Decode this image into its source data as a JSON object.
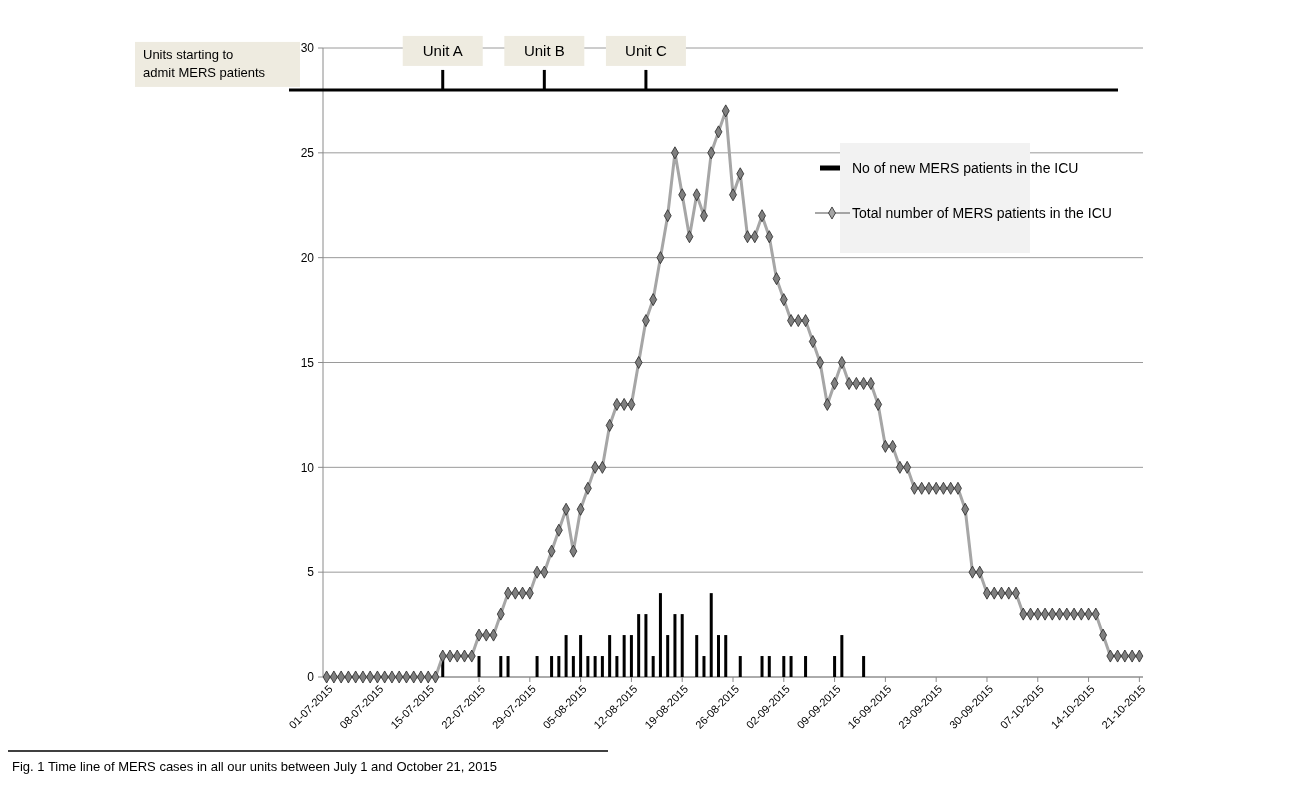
{
  "chart_data": {
    "type": "bar",
    "x": [
      "2015-07-01",
      "2015-07-02",
      "2015-07-03",
      "2015-07-04",
      "2015-07-05",
      "2015-07-06",
      "2015-07-07",
      "2015-07-08",
      "2015-07-09",
      "2015-07-10",
      "2015-07-11",
      "2015-07-12",
      "2015-07-13",
      "2015-07-14",
      "2015-07-15",
      "2015-07-16",
      "2015-07-17",
      "2015-07-18",
      "2015-07-19",
      "2015-07-20",
      "2015-07-21",
      "2015-07-22",
      "2015-07-23",
      "2015-07-24",
      "2015-07-25",
      "2015-07-26",
      "2015-07-27",
      "2015-07-28",
      "2015-07-29",
      "2015-07-30",
      "2015-07-31",
      "2015-08-01",
      "2015-08-02",
      "2015-08-03",
      "2015-08-04",
      "2015-08-05",
      "2015-08-06",
      "2015-08-07",
      "2015-08-08",
      "2015-08-09",
      "2015-08-10",
      "2015-08-11",
      "2015-08-12",
      "2015-08-13",
      "2015-08-14",
      "2015-08-15",
      "2015-08-16",
      "2015-08-17",
      "2015-08-18",
      "2015-08-19",
      "2015-08-20",
      "2015-08-21",
      "2015-08-22",
      "2015-08-23",
      "2015-08-24",
      "2015-08-25",
      "2015-08-26",
      "2015-08-27",
      "2015-08-28",
      "2015-08-29",
      "2015-08-30",
      "2015-08-31",
      "2015-09-01",
      "2015-09-02",
      "2015-09-03",
      "2015-09-04",
      "2015-09-05",
      "2015-09-06",
      "2015-09-07",
      "2015-09-08",
      "2015-09-09",
      "2015-09-10",
      "2015-09-11",
      "2015-09-12",
      "2015-09-13",
      "2015-09-14",
      "2015-09-15",
      "2015-09-16",
      "2015-09-17",
      "2015-09-18",
      "2015-09-19",
      "2015-09-20",
      "2015-09-21",
      "2015-09-22",
      "2015-09-23",
      "2015-09-24",
      "2015-09-25",
      "2015-09-26",
      "2015-09-27",
      "2015-09-28",
      "2015-09-29",
      "2015-09-30",
      "2015-10-01",
      "2015-10-02",
      "2015-10-03",
      "2015-10-04",
      "2015-10-05",
      "2015-10-06",
      "2015-10-07",
      "2015-10-08",
      "2015-10-09",
      "2015-10-10",
      "2015-10-11",
      "2015-10-12",
      "2015-10-13",
      "2015-10-14",
      "2015-10-15",
      "2015-10-16",
      "2015-10-17",
      "2015-10-18",
      "2015-10-19",
      "2015-10-20",
      "2015-10-21"
    ],
    "series": [
      {
        "name": "No of new MERS patients in the ICU",
        "color": "#000000",
        "values": [
          0,
          0,
          0,
          0,
          0,
          0,
          0,
          0,
          0,
          0,
          0,
          0,
          0,
          0,
          0,
          0,
          1,
          0,
          0,
          0,
          0,
          1,
          0,
          0,
          1,
          1,
          0,
          0,
          0,
          1,
          0,
          1,
          1,
          2,
          1,
          2,
          1,
          1,
          1,
          2,
          1,
          2,
          2,
          3,
          3,
          1,
          4,
          2,
          3,
          3,
          0,
          2,
          1,
          4,
          2,
          2,
          0,
          1,
          0,
          0,
          1,
          1,
          0,
          1,
          1,
          0,
          1,
          0,
          0,
          0,
          1,
          2,
          0,
          0,
          1,
          0,
          0,
          0,
          0,
          0,
          0,
          0,
          0,
          0,
          0,
          0,
          0,
          0,
          0,
          0,
          0,
          0,
          0,
          0,
          0,
          0,
          0,
          0,
          0,
          0,
          0,
          0,
          0,
          0,
          0,
          0,
          0,
          0,
          0,
          0,
          0,
          0,
          0
        ]
      },
      {
        "name": "Total number of MERS patients in the ICU",
        "type": "line",
        "color": "#a6a6a6",
        "marker": "diamond",
        "values": [
          0,
          0,
          0,
          0,
          0,
          0,
          0,
          0,
          0,
          0,
          0,
          0,
          0,
          0,
          0,
          0,
          1,
          1,
          1,
          1,
          1,
          2,
          2,
          2,
          3,
          4,
          4,
          4,
          4,
          5,
          5,
          6,
          7,
          8,
          6,
          8,
          9,
          10,
          10,
          12,
          13,
          13,
          13,
          15,
          17,
          18,
          20,
          22,
          25,
          23,
          21,
          23,
          22,
          25,
          26,
          27,
          23,
          24,
          21,
          21,
          22,
          21,
          19,
          18,
          17,
          17,
          17,
          16,
          15,
          13,
          14,
          15,
          14,
          14,
          14,
          14,
          13,
          11,
          11,
          10,
          10,
          9,
          9,
          9,
          9,
          9,
          9,
          9,
          8,
          5,
          5,
          4,
          4,
          4,
          4,
          4,
          3,
          3,
          3,
          3,
          3,
          3,
          3,
          3,
          3,
          3,
          3,
          2,
          1,
          1,
          1,
          1,
          1
        ]
      }
    ],
    "xlim": [
      "2015-06-30T12:00",
      "2015-10-21T12:00"
    ],
    "xticks": [
      {
        "value": "2015-07-01",
        "label": "01-07-2015"
      },
      {
        "value": "2015-07-08",
        "label": "08-07-2015"
      },
      {
        "value": "2015-07-15",
        "label": "15-07-2015"
      },
      {
        "value": "2015-07-22",
        "label": "22-07-2015"
      },
      {
        "value": "2015-07-29",
        "label": "29-07-2015"
      },
      {
        "value": "2015-08-05",
        "label": "05-08-2015"
      },
      {
        "value": "2015-08-12",
        "label": "12-08-2015"
      },
      {
        "value": "2015-08-19",
        "label": "19-08-2015"
      },
      {
        "value": "2015-08-26",
        "label": "26-08-2015"
      },
      {
        "value": "2015-09-02",
        "label": "02-09-2015"
      },
      {
        "value": "2015-09-09",
        "label": "09-09-2015"
      },
      {
        "value": "2015-09-16",
        "label": "16-09-2015"
      },
      {
        "value": "2015-09-23",
        "label": "23-09-2015"
      },
      {
        "value": "2015-09-30",
        "label": "30-09-2015"
      },
      {
        "value": "2015-10-07",
        "label": "07-10-2015"
      },
      {
        "value": "2015-10-14",
        "label": "14-10-2015"
      },
      {
        "value": "2015-10-21",
        "label": "21-10-2015"
      }
    ],
    "ylim": [
      0,
      30
    ],
    "yticks": [
      0,
      5,
      10,
      15,
      20,
      25,
      30
    ],
    "grid": "y",
    "legend": "right",
    "ref_lines": [
      {
        "axis": "y",
        "value": 28,
        "label": "Units starting to admit MERS patients",
        "color": "#000000"
      }
    ],
    "annotations": [
      {
        "text": "Unit A",
        "x": "2015-07-17",
        "y": 28
      },
      {
        "text": "Unit B",
        "x": "2015-07-31",
        "y": 28
      },
      {
        "text": "Unit C",
        "x": "2015-08-14",
        "y": 28
      },
      "Fig. 1 Time line of MERS cases in all our units between July 1 and October 21, 2015"
    ]
  }
}
